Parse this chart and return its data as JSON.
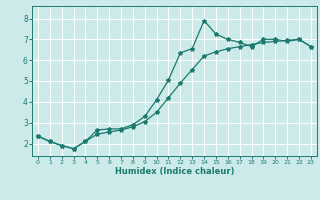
{
  "xlabel": "Humidex (Indice chaleur)",
  "xlim": [
    -0.5,
    23.5
  ],
  "ylim": [
    1.4,
    8.6
  ],
  "yticks": [
    2,
    3,
    4,
    5,
    6,
    7,
    8
  ],
  "xticks": [
    0,
    1,
    2,
    3,
    4,
    5,
    6,
    7,
    8,
    9,
    10,
    11,
    12,
    13,
    14,
    15,
    16,
    17,
    18,
    19,
    20,
    21,
    22,
    23
  ],
  "background_color": "#cdeaea",
  "grid_color": "#ffffff",
  "line_color": "#1a7a6e",
  "line1_x": [
    0,
    1,
    2,
    3,
    4,
    5,
    6,
    7,
    8,
    9,
    10,
    11,
    12,
    13,
    14,
    15,
    16,
    17,
    18,
    19,
    20,
    21,
    22,
    23
  ],
  "line1_y": [
    2.35,
    2.1,
    1.9,
    1.75,
    2.1,
    2.65,
    2.7,
    2.7,
    2.9,
    3.3,
    4.1,
    5.05,
    6.35,
    6.55,
    7.9,
    7.25,
    7.0,
    6.85,
    6.65,
    7.0,
    7.0,
    6.9,
    7.0,
    6.65
  ],
  "line2_x": [
    0,
    1,
    2,
    3,
    4,
    5,
    6,
    7,
    8,
    9,
    10,
    11,
    12,
    13,
    14,
    15,
    16,
    17,
    18,
    19,
    20,
    21,
    22,
    23
  ],
  "line2_y": [
    2.35,
    2.1,
    1.9,
    1.75,
    2.1,
    2.45,
    2.55,
    2.65,
    2.8,
    3.05,
    3.5,
    4.2,
    4.9,
    5.55,
    6.2,
    6.4,
    6.55,
    6.65,
    6.75,
    6.85,
    6.9,
    6.95,
    7.0,
    6.65
  ]
}
